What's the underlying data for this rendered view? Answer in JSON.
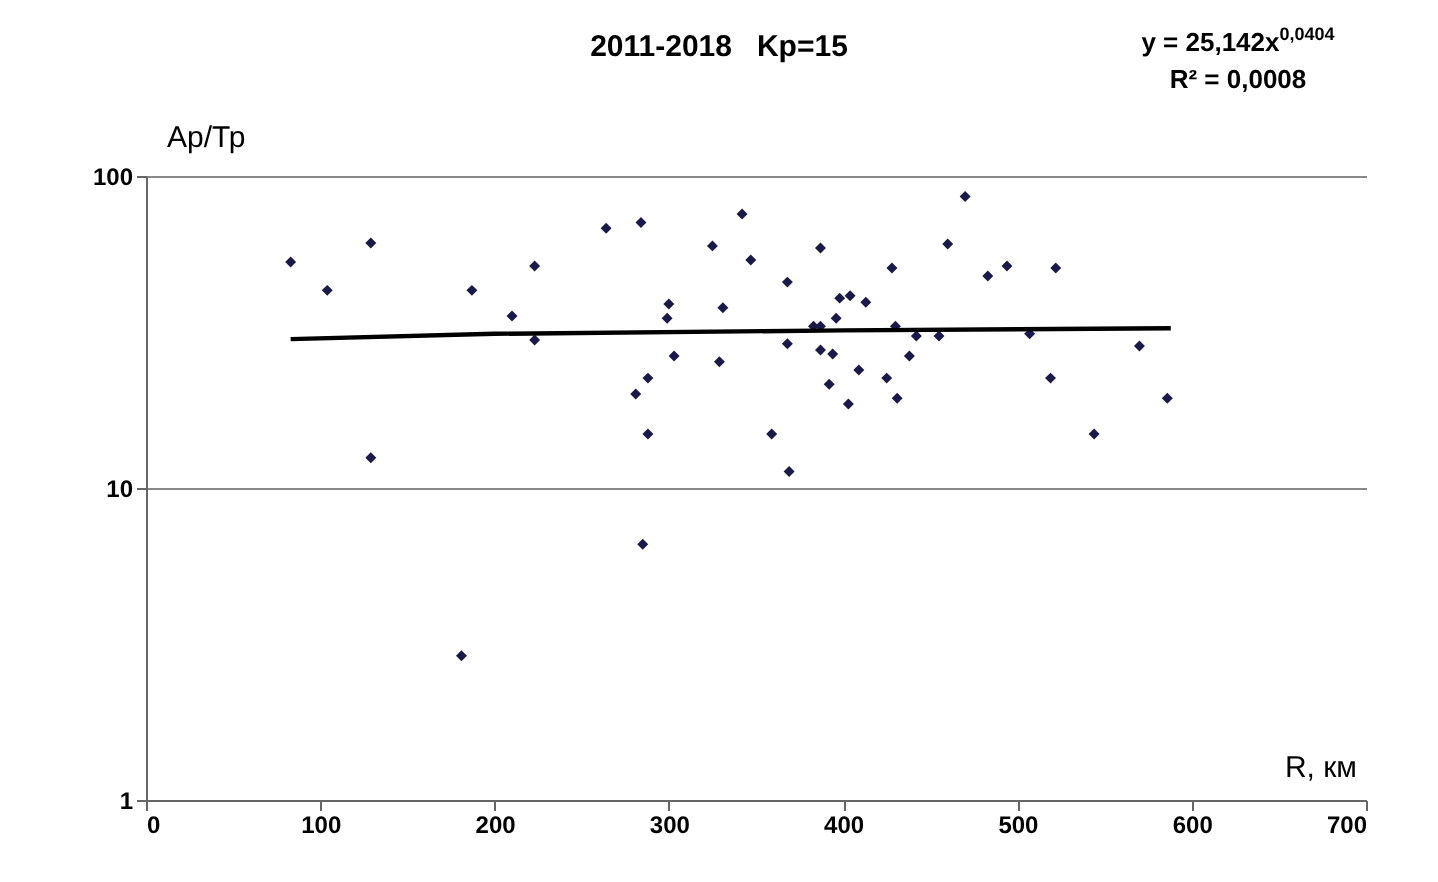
{
  "chart_data": {
    "type": "scatter",
    "title": "2011-2018   Kр=15",
    "xlabel": "R, км",
    "ylabel": "Ар/Тр",
    "annotations": [
      "y = 25,142x$^{0,0404}$",
      "R² = 0,0008"
    ],
    "xlim": [
      0,
      700
    ],
    "xticks": [
      0,
      100,
      200,
      300,
      400,
      500,
      600,
      700
    ],
    "ylim": [
      1,
      100
    ],
    "yticks": [
      1,
      10,
      100
    ],
    "log": "y",
    "grid": "y",
    "series": [
      {
        "marker": "diamond",
        "color": "#1a1a4a",
        "x": [
          83,
          104,
          129,
          129,
          187,
          210,
          223,
          223,
          285,
          181,
          264,
          284,
          300,
          299,
          303,
          288,
          281,
          288,
          325,
          331,
          329,
          342,
          347,
          368,
          368,
          359,
          369,
          387,
          383,
          387,
          396,
          398,
          404,
          413,
          387,
          394,
          392,
          409,
          403,
          428,
          430,
          425,
          431,
          438,
          442,
          455,
          460,
          470,
          483,
          494,
          522,
          507,
          519,
          544,
          570,
          586
        ],
        "values": [
          53,
          43,
          61,
          12.5,
          43,
          35.6,
          51.5,
          29.8,
          6.6,
          2.9,
          68,
          71,
          38.9,
          35,
          26.5,
          22.5,
          20,
          14.9,
          59.7,
          37.8,
          25.4,
          75.5,
          53.8,
          45.7,
          29,
          14.9,
          11.3,
          58.8,
          33,
          33,
          35,
          40.6,
          41.3,
          39.4,
          27.7,
          26.9,
          21.5,
          23.9,
          18.6,
          50.7,
          33,
          22.5,
          19.4,
          26.5,
          30.7,
          30.7,
          60.5,
          86,
          47.8,
          51.5,
          50.7,
          31.2,
          22.5,
          14.9,
          28.5,
          19.4
        ]
      },
      {
        "type": "line",
        "color": "#000000",
        "x": [
          83,
          200,
          400,
          588
        ],
        "values": [
          30,
          31.2,
          32,
          32.5
        ]
      }
    ]
  }
}
